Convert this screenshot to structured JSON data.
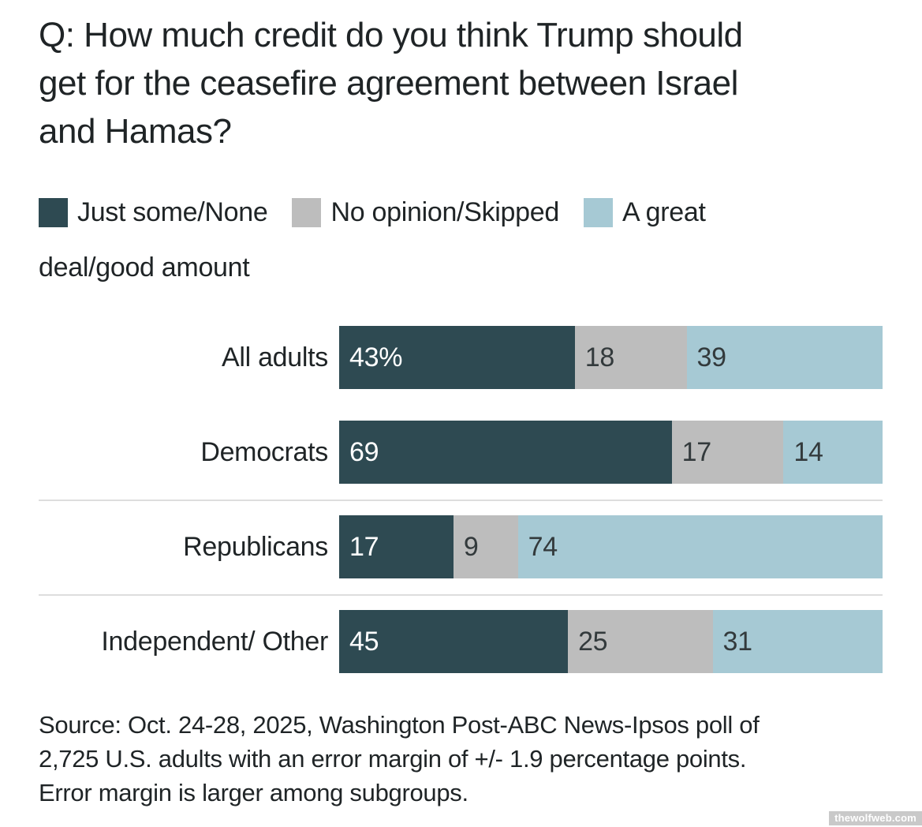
{
  "title": {
    "lines": [
      "Q: How much credit do you think Trump should",
      "get for the ceasefire agreement between Israel",
      "and Hamas?"
    ]
  },
  "legend": {
    "row1": [
      {
        "label": "Just some/None",
        "color": "#2e4a52",
        "swatch": "dark-teal-swatch"
      },
      {
        "label": "No opinion/Skipped",
        "color": "#bdbdbd",
        "swatch": "gray-swatch"
      },
      {
        "label": "A great",
        "color": "#a6c9d4",
        "swatch": "light-blue-swatch"
      }
    ],
    "row2_text": "deal/good amount"
  },
  "chart": {
    "rows": [
      {
        "label": "All adults",
        "segments": [
          {
            "text": "43%",
            "value": 43
          },
          {
            "text": "18",
            "value": 18
          },
          {
            "text": "39",
            "value": 39
          }
        ]
      },
      {
        "label": "Democrats",
        "segments": [
          {
            "text": "69",
            "value": 69
          },
          {
            "text": "17",
            "value": 17
          },
          {
            "text": "14",
            "value": 14
          }
        ]
      },
      {
        "label": "Republicans",
        "segments": [
          {
            "text": "17",
            "value": 17
          },
          {
            "text": "9",
            "value": 9
          },
          {
            "text": "74",
            "value": 74
          }
        ]
      },
      {
        "label": "Independent/ Other",
        "segments": [
          {
            "text": "45",
            "value": 45
          },
          {
            "text": "25",
            "value": 25
          },
          {
            "text": "31",
            "value": 31
          }
        ]
      }
    ]
  },
  "source": {
    "lines": [
      "Source: Oct. 24-28, 2025, Washington Post-ABC News-Ipsos poll of",
      "2,725 U.S. adults with an error margin of +/- 1.9 percentage points.",
      "Error margin is larger among subgroups."
    ]
  },
  "watermark": {
    "text": "thewolfweb.com"
  },
  "chart_data": {
    "type": "bar",
    "orientation": "horizontal-stacked",
    "title": "Q: How much credit do you think Trump should get for the ceasefire agreement between Israel and Hamas?",
    "categories": [
      "All adults",
      "Democrats",
      "Republicans",
      "Independent/ Other"
    ],
    "series": [
      {
        "name": "Just some/None",
        "color": "#2e4a52",
        "values": [
          43,
          69,
          17,
          45
        ]
      },
      {
        "name": "No opinion/Skipped",
        "color": "#bdbdbd",
        "values": [
          18,
          17,
          9,
          25
        ]
      },
      {
        "name": "A great deal/good amount",
        "color": "#a6c9d4",
        "values": [
          39,
          14,
          74,
          31
        ]
      }
    ],
    "value_unit": "percent",
    "xlim": [
      0,
      100
    ],
    "legend_position": "top",
    "data_labels": "inside-start",
    "grid": "off",
    "source_note": "Source: Oct. 24-28, 2025, Washington Post-ABC News-Ipsos poll of 2,725 U.S. adults with an error margin of +/- 1.9 percentage points. Error margin is larger among subgroups."
  }
}
